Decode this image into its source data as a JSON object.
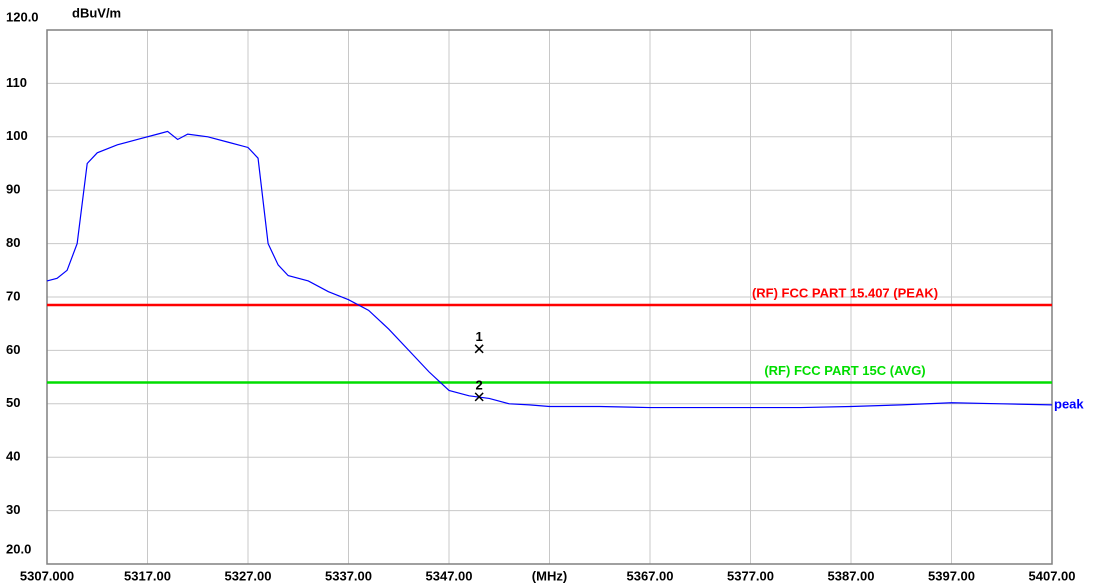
{
  "chart_data": {
    "type": "line",
    "y_unit_label": "dBuV/m",
    "xlim": [
      5307,
      5407
    ],
    "ylim": [
      20,
      120
    ],
    "grid": true,
    "xticks": [
      {
        "value": 5307,
        "label": "5307.000"
      },
      {
        "value": 5317,
        "label": "5317.00"
      },
      {
        "value": 5327,
        "label": "5327.00"
      },
      {
        "value": 5337,
        "label": "5337.00"
      },
      {
        "value": 5347,
        "label": "5347.00"
      },
      {
        "value": 5357,
        "label": "(MHz)"
      },
      {
        "value": 5367,
        "label": "5367.00"
      },
      {
        "value": 5377,
        "label": "5377.00"
      },
      {
        "value": 5387,
        "label": "5387.00"
      },
      {
        "value": 5397,
        "label": "5397.00"
      },
      {
        "value": 5407,
        "label": "5407.00"
      }
    ],
    "yticks": [
      {
        "value": 20,
        "label": "20.0"
      },
      30,
      40,
      50,
      60,
      70,
      80,
      90,
      100,
      110,
      {
        "value": 120,
        "label": "120.0"
      }
    ],
    "x": [
      5307,
      5308,
      5309,
      5310,
      5311,
      5312,
      5314,
      5316,
      5318,
      5319,
      5320,
      5321,
      5323,
      5325,
      5327,
      5328,
      5329,
      5330,
      5331,
      5333,
      5335,
      5337,
      5339,
      5341,
      5343,
      5345,
      5347,
      5349,
      5351,
      5353,
      5355,
      5357,
      5362,
      5367,
      5372,
      5377,
      5382,
      5387,
      5392,
      5397,
      5402,
      5407
    ],
    "series": [
      {
        "name": "peak",
        "color": "#0000ff",
        "values": [
          73,
          73.5,
          75,
          80,
          95,
          97,
          98.5,
          99.5,
          100.5,
          101,
          99.5,
          100.5,
          100,
          99,
          98,
          96,
          80,
          76,
          74,
          73,
          71,
          69.5,
          67.5,
          64,
          60,
          56,
          52.5,
          51.5,
          51,
          50,
          49.8,
          49.5,
          49.5,
          49.3,
          49.3,
          49.3,
          49.3,
          49.5,
          49.8,
          50.2,
          50,
          49.8
        ]
      }
    ],
    "limit_lines": [
      {
        "label": "(RF) FCC PART 15.407  (PEAK)",
        "value": 68.5,
        "color": "#ff0000"
      },
      {
        "label": "(RF) FCC PART 15C (AVG)",
        "value": 54,
        "color": "#00dd00"
      }
    ],
    "markers": [
      {
        "label": "1",
        "x": 5350,
        "y": 60.3
      },
      {
        "label": "2",
        "x": 5350,
        "y": 51.3
      }
    ]
  }
}
